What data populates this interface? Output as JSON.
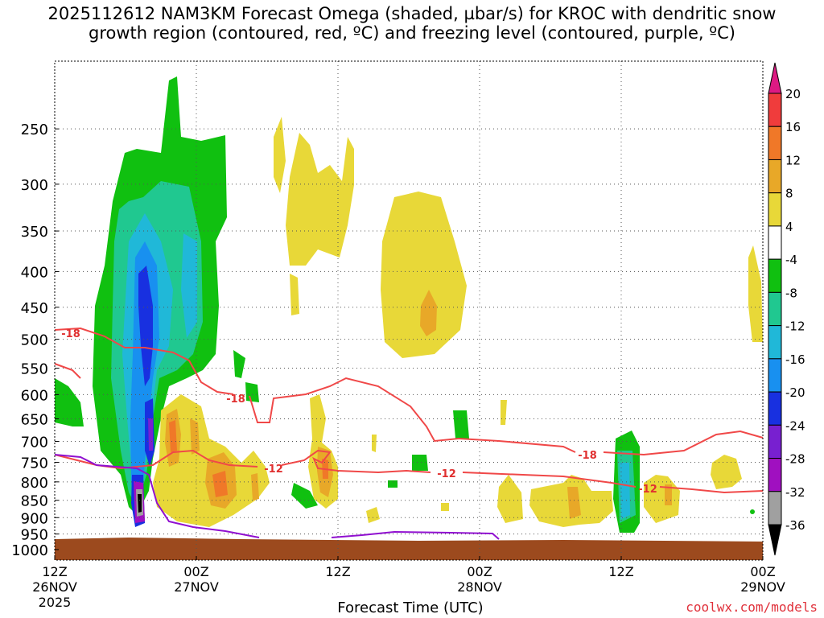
{
  "title_line1": "2025112612 NAM3KM Forecast Omega (shaded, µbar/s) for KROC with dendritic snow",
  "title_line2": "growth region (contoured, red, ºC) and freezing level (contoured, purple, ºC)",
  "credit": "coolwx.com/models",
  "chart_data": {
    "type": "heatmap",
    "xlabel": "Forecast Time (UTC)",
    "ylabel": "",
    "y_axis": "pressure (inverted)",
    "ylim": [
      1000,
      200
    ],
    "y_ticks": [
      "250",
      "300",
      "350",
      "400",
      "450",
      "500",
      "550",
      "600",
      "650",
      "700",
      "750",
      "800",
      "850",
      "900",
      "950",
      "1000"
    ],
    "x_ticks": [
      {
        "label1": "12Z",
        "label2": "26NOV",
        "label3": "2025",
        "hour": 0
      },
      {
        "label1": "00Z",
        "label2": "27NOV",
        "label3": "",
        "hour": 12
      },
      {
        "label1": "12Z",
        "label2": "",
        "label3": "",
        "hour": 24
      },
      {
        "label1": "00Z",
        "label2": "28NOV",
        "label3": "",
        "hour": 36
      },
      {
        "label1": "12Z",
        "label2": "",
        "label3": "",
        "hour": 48
      },
      {
        "label1": "00Z",
        "label2": "29NOV",
        "label3": "",
        "hour": 60
      }
    ],
    "grid": true,
    "colorbar": {
      "levels": [
        "20",
        "16",
        "12",
        "8",
        "4",
        "-4",
        "-8",
        "-12",
        "-16",
        "-20",
        "-24",
        "-28",
        "-32",
        "-36"
      ],
      "colors": [
        "#dd1a83",
        "#f03c3c",
        "#f07828",
        "#e8a828",
        "#e8d838",
        "#ffffff",
        "#10c010",
        "#20c890",
        "#20b8d8",
        "#1890f0",
        "#1830e0",
        "#7820d0",
        "#a010c0",
        "#a0a0a0",
        "#000000"
      ]
    },
    "contour_labels": [
      {
        "text": "-18",
        "color": "red"
      },
      {
        "text": "-18",
        "color": "red"
      },
      {
        "text": "-12",
        "color": "red"
      },
      {
        "text": "-12",
        "color": "red"
      },
      {
        "text": "-18",
        "color": "red"
      },
      {
        "text": "-12",
        "color": "red"
      }
    ],
    "surface_color": "#9c4a1e",
    "red_contour_color": "#f04848",
    "purple_contour_color": "#9010d0"
  }
}
